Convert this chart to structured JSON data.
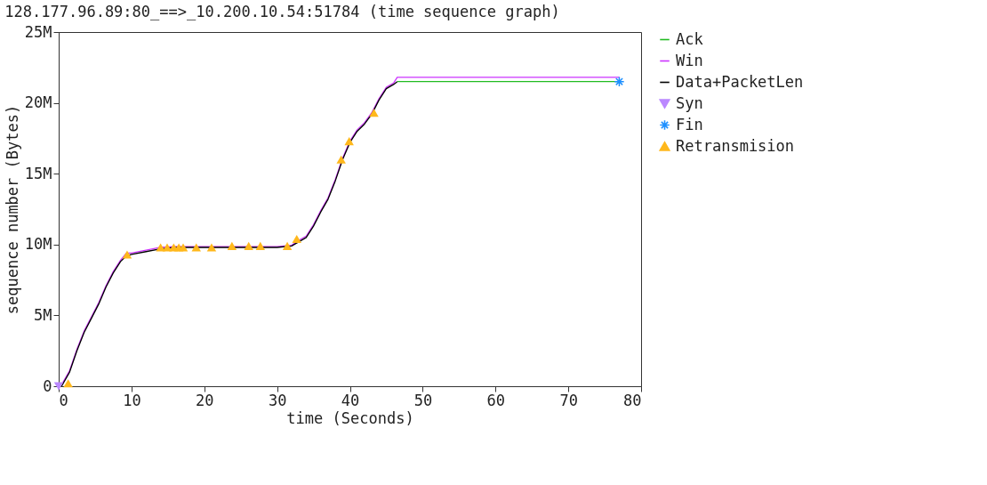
{
  "chart_data": {
    "type": "line",
    "title": "128.177.96.89:80_==>_10.200.10.54:51784 (time sequence graph)",
    "xlabel": "time (Seconds)",
    "ylabel": "sequence number (Bytes)",
    "xlim": [
      0,
      80
    ],
    "xticks": [
      0,
      10,
      20,
      30,
      40,
      50,
      60,
      70,
      80
    ],
    "ylim": [
      0,
      25
    ],
    "yticks": [
      0,
      {
        "value": 5,
        "label": "5M"
      },
      {
        "value": 10,
        "label": "10M"
      },
      {
        "value": 15,
        "label": "15M"
      },
      {
        "value": 20,
        "label": "20M"
      },
      {
        "value": 25,
        "label": "25M"
      }
    ],
    "grid": false,
    "legend": "right",
    "series": [
      {
        "name": "Ack",
        "color": "#22bb22",
        "x": [
          46.5,
          77
        ],
        "values": [
          21.5,
          21.5
        ]
      },
      {
        "name": "Win",
        "color": "#cc33ff",
        "x": [
          0.4,
          1.5,
          2.5,
          3.5,
          4.5,
          5.5,
          6.5,
          7.5,
          8.5,
          9.3,
          10,
          12,
          14,
          16,
          20,
          25,
          30,
          32,
          33,
          34,
          35,
          36,
          37,
          38,
          39,
          40,
          41,
          42,
          43,
          44,
          45,
          46,
          46.5,
          77
        ],
        "values": [
          0.1,
          1.1,
          2.6,
          3.9,
          4.9,
          5.9,
          7.1,
          8.1,
          8.9,
          9.4,
          9.4,
          9.6,
          9.8,
          9.85,
          9.85,
          9.85,
          9.85,
          9.95,
          10.3,
          10.6,
          11.4,
          12.4,
          13.3,
          14.6,
          16.1,
          17.3,
          18.1,
          18.6,
          19.3,
          20.3,
          21.1,
          21.4,
          21.8,
          21.8
        ]
      },
      {
        "name": "Data+PacketLen",
        "color": "#000000",
        "x": [
          0.4,
          1.5,
          2.5,
          3.5,
          4.5,
          5.5,
          6.5,
          7.5,
          8.5,
          9.3,
          10,
          12,
          14,
          16,
          20,
          25,
          30,
          32,
          33,
          34,
          35,
          36,
          37,
          38,
          39,
          40,
          41,
          42,
          43,
          44,
          45,
          46,
          46.5
        ],
        "values": [
          0,
          1,
          2.5,
          3.8,
          4.8,
          5.8,
          7,
          8,
          8.8,
          9.2,
          9.3,
          9.5,
          9.7,
          9.8,
          9.8,
          9.8,
          9.8,
          9.9,
          10.2,
          10.5,
          11.3,
          12.3,
          13.2,
          14.5,
          16,
          17.2,
          18,
          18.5,
          19.2,
          20.2,
          21,
          21.3,
          21.5
        ]
      },
      {
        "name": "Syn",
        "type": "scatter",
        "color": "#bb88ff",
        "marker": "triangle-down",
        "x": [
          0
        ],
        "values": [
          0
        ]
      },
      {
        "name": "Fin",
        "type": "scatter",
        "color": "#1e90ff",
        "marker": "cross",
        "x": [
          77
        ],
        "values": [
          21.5
        ]
      },
      {
        "name": "Retransmision",
        "type": "scatter",
        "color": "#ffb81c",
        "marker": "triangle",
        "x": [
          1.3,
          9.4,
          14.0,
          14.9,
          15.8,
          16.5,
          17.1,
          18.9,
          21.0,
          23.8,
          26.1,
          27.7,
          31.4,
          32.7,
          38.8,
          39.9,
          43.3
        ],
        "values": [
          0.2,
          9.3,
          9.8,
          9.8,
          9.8,
          9.8,
          9.8,
          9.8,
          9.8,
          9.9,
          9.9,
          9.9,
          9.9,
          10.4,
          16.0,
          17.3,
          19.3
        ]
      }
    ]
  }
}
